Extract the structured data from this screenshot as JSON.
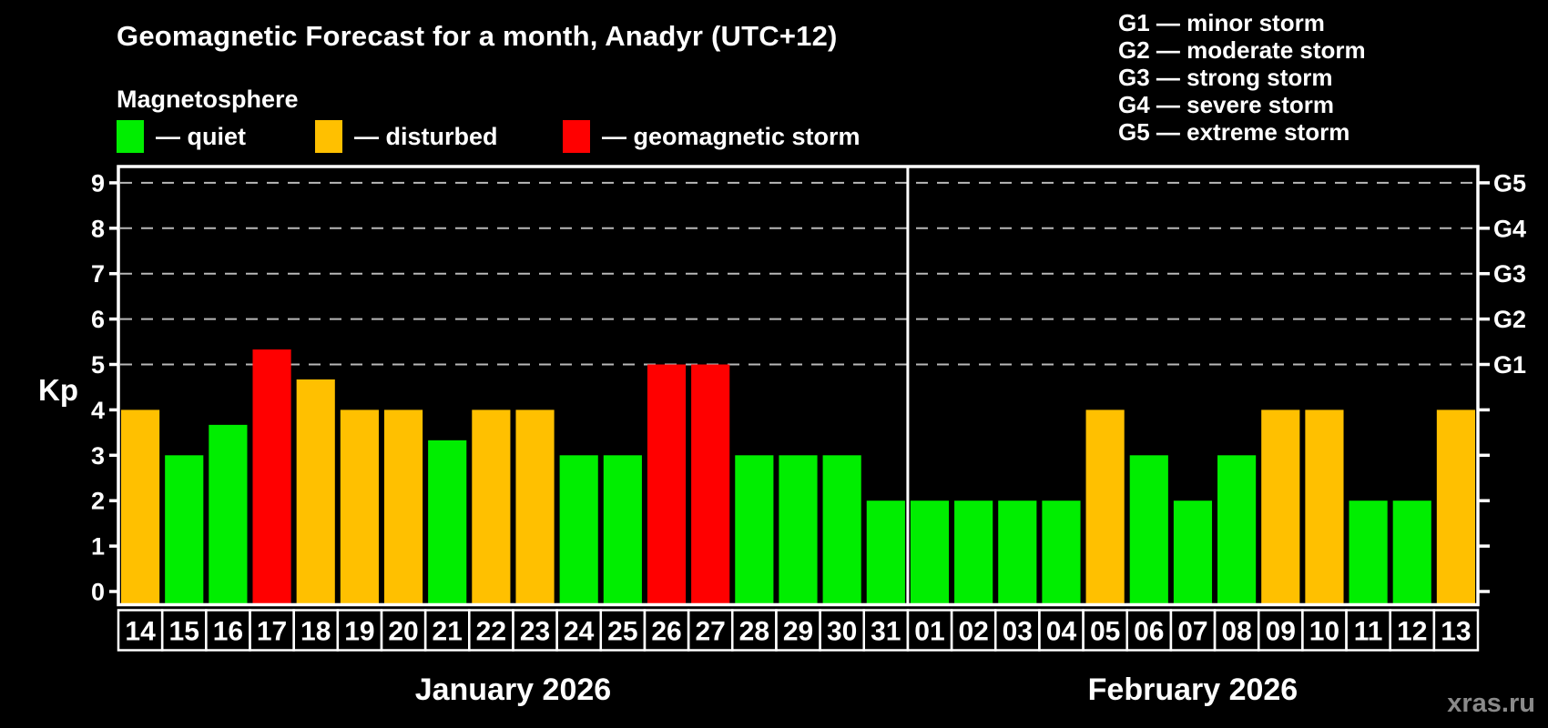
{
  "header": {
    "title": "Geomagnetic Forecast for a month, Anadyr (UTC+12)",
    "subtitle": "Magnetosphere",
    "legend": [
      {
        "id": "quiet",
        "label": "— quiet",
        "color": "#00ee00"
      },
      {
        "id": "disturbed",
        "label": "— disturbed",
        "color": "#ffc000"
      },
      {
        "id": "storm",
        "label": "— geomagnetic storm",
        "color": "#ff0000"
      }
    ],
    "g_scale_legend": [
      "G1 — minor storm",
      "G2 — moderate storm",
      "G3 — strong storm",
      "G4 — severe storm",
      "G5 — extreme storm"
    ]
  },
  "chart_data": {
    "type": "bar",
    "title": "Geomagnetic Forecast for a month, Anadyr (UTC+12)",
    "ylabel": "Kp",
    "ylim": [
      0,
      9
    ],
    "yticks": [
      0,
      1,
      2,
      3,
      4,
      5,
      6,
      7,
      8,
      9
    ],
    "grid_values": [
      5,
      6,
      7,
      8,
      9
    ],
    "grid_on": true,
    "right_axis_labels": [
      {
        "value": 5,
        "label": "G1"
      },
      {
        "value": 6,
        "label": "G2"
      },
      {
        "value": 7,
        "label": "G3"
      },
      {
        "value": 8,
        "label": "G4"
      },
      {
        "value": 9,
        "label": "G5"
      }
    ],
    "categories": [
      "14",
      "15",
      "16",
      "17",
      "18",
      "19",
      "20",
      "21",
      "22",
      "23",
      "24",
      "25",
      "26",
      "27",
      "28",
      "29",
      "30",
      "31",
      "01",
      "02",
      "03",
      "04",
      "05",
      "06",
      "07",
      "08",
      "09",
      "10",
      "11",
      "12",
      "13"
    ],
    "values": [
      4,
      3,
      3.67,
      5.33,
      4.67,
      4,
      4,
      3.33,
      4,
      4,
      3,
      3,
      5,
      5,
      3,
      3,
      3,
      2,
      2,
      2,
      2,
      2,
      4,
      3,
      2,
      3,
      4,
      4,
      2,
      2,
      4
    ],
    "statuses": [
      "disturbed",
      "quiet",
      "quiet",
      "storm",
      "disturbed",
      "disturbed",
      "disturbed",
      "quiet",
      "disturbed",
      "disturbed",
      "quiet",
      "quiet",
      "storm",
      "storm",
      "quiet",
      "quiet",
      "quiet",
      "quiet",
      "quiet",
      "quiet",
      "quiet",
      "quiet",
      "disturbed",
      "quiet",
      "quiet",
      "quiet",
      "disturbed",
      "disturbed",
      "quiet",
      "quiet",
      "disturbed"
    ],
    "colors": {
      "quiet": "#00ee00",
      "disturbed": "#ffc000",
      "storm": "#ff0000"
    },
    "axis_color": "#ffffff",
    "grid_color": "#b8b8b8",
    "background": "#000000",
    "months": [
      {
        "label": "January 2026",
        "days": 18
      },
      {
        "label": "February 2026",
        "days": 13
      }
    ]
  },
  "watermark": "xras.ru"
}
